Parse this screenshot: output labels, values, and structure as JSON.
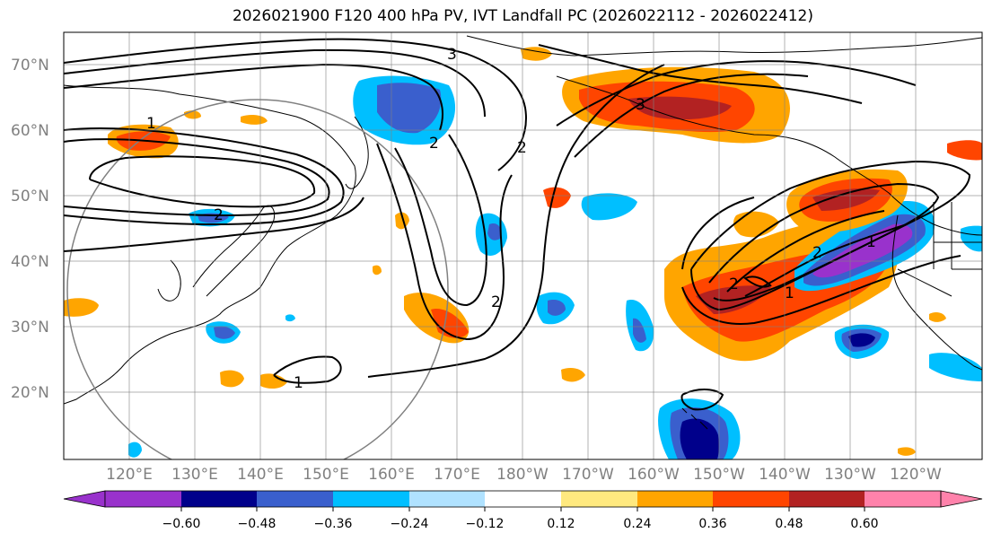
{
  "title": "2026021900 F120 400 hPa PV, IVT Landfall PC (2026022112 - 2026022412)",
  "lat_labels": [
    "70°N",
    "60°N",
    "50°N",
    "40°N",
    "30°N",
    "20°N"
  ],
  "lon_labels": [
    "120°E",
    "130°E",
    "140°E",
    "150°E",
    "160°E",
    "170°E",
    "180°W",
    "170°W",
    "160°W",
    "150°W",
    "140°W",
    "130°W",
    "120°W"
  ],
  "contour_labels": [
    "3",
    "3",
    "2",
    "2",
    "1",
    "1",
    "2",
    "2",
    "1",
    "2",
    "2",
    "1"
  ],
  "colorbar": {
    "ticks": [
      "−0.60",
      "−0.48",
      "−0.36",
      "−0.24",
      "−0.12",
      "0.12",
      "0.24",
      "0.36",
      "0.48",
      "0.60"
    ],
    "colors": [
      "#9932cc",
      "#00008b",
      "#3a5fcd",
      "#00bfff",
      "#b0e2ff",
      "#ffffff",
      "#ffe97f",
      "#ffa500",
      "#ff4500",
      "#b22222",
      "#ff82ab"
    ]
  },
  "colors": {
    "purple": "#9932cc",
    "navy": "#00008b",
    "royal": "#3a5fcd",
    "sky": "#00bfff",
    "light_blue": "#b0e2ff",
    "yellow": "#ffe97f",
    "orange": "#ffa500",
    "red_orange": "#ff4500",
    "dark_red": "#b22222",
    "pink": "#ff82ab"
  }
}
